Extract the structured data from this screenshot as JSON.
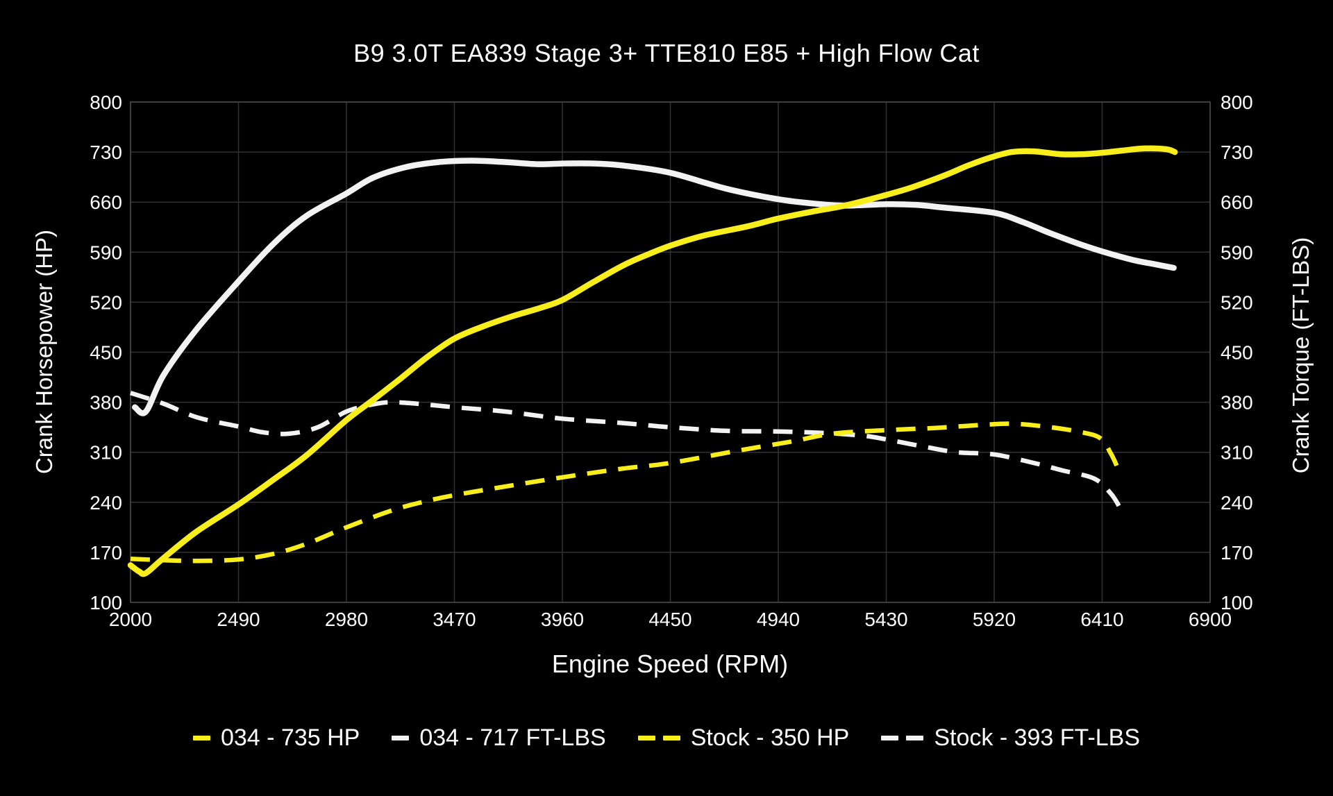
{
  "title": "B9 3.0T EA839 Stage 3+ TTE810 E85 + High Flow Cat",
  "colors": {
    "background": "#000000",
    "accent_yellow": "#f7ee1b",
    "accent_white": "#f2f2f2",
    "grid": "#323232",
    "border": "#4a4a4a",
    "text": "#ffffff"
  },
  "legend": {
    "items": [
      {
        "label": "034 - 735 HP",
        "color": "#f7ee1b",
        "dashes": 1
      },
      {
        "label": "034 - 717 FT-LBS",
        "color": "#f2f2f2",
        "dashes": 1
      },
      {
        "label": "Stock - 350 HP",
        "color": "#f7ee1b",
        "dashes": 2
      },
      {
        "label": "Stock - 393 FT-LBS",
        "color": "#f2f2f2",
        "dashes": 2
      }
    ]
  },
  "chart_data": {
    "type": "line",
    "title": "B9 3.0T EA839 Stage 3+ TTE810 E85 + High Flow Cat",
    "xlabel": "Engine Speed (RPM)",
    "ylabel_left": "Crank Horsepower (HP)",
    "ylabel_right": "Crank Torque (FT-LBS)",
    "xlim": [
      2000,
      6900
    ],
    "ylim": [
      100,
      800
    ],
    "x_ticks": [
      2000,
      2490,
      2980,
      3470,
      3960,
      4450,
      4940,
      5430,
      5920,
      6410,
      6900
    ],
    "y_ticks": [
      100,
      170,
      240,
      310,
      380,
      450,
      520,
      590,
      660,
      730,
      800
    ],
    "grid": true,
    "legend_position": "bottom",
    "series": [
      {
        "name": "Stock - 393 FT-LBS",
        "axis": "right",
        "color": "#f2f2f2",
        "style": "dashed",
        "peak_value": 393,
        "points": [
          [
            2000,
            393
          ],
          [
            2150,
            378
          ],
          [
            2300,
            359
          ],
          [
            2490,
            346
          ],
          [
            2600,
            338
          ],
          [
            2720,
            336
          ],
          [
            2850,
            345
          ],
          [
            2980,
            367
          ],
          [
            3100,
            377
          ],
          [
            3180,
            380
          ],
          [
            3300,
            378
          ],
          [
            3470,
            373
          ],
          [
            3700,
            367
          ],
          [
            3960,
            357
          ],
          [
            4230,
            351
          ],
          [
            4450,
            345
          ],
          [
            4700,
            340
          ],
          [
            4940,
            339
          ],
          [
            5150,
            337
          ],
          [
            5330,
            333
          ],
          [
            5430,
            328
          ],
          [
            5600,
            318
          ],
          [
            5750,
            310
          ],
          [
            5920,
            307
          ],
          [
            6100,
            295
          ],
          [
            6225,
            285
          ],
          [
            6375,
            273
          ],
          [
            6450,
            252
          ],
          [
            6490,
            233
          ]
        ]
      },
      {
        "name": "034 - 717 FT-LBS",
        "axis": "right",
        "color": "#f2f2f2",
        "style": "solid",
        "peak_value": 717,
        "points": [
          [
            2020,
            373
          ],
          [
            2070,
            367
          ],
          [
            2150,
            418
          ],
          [
            2300,
            482
          ],
          [
            2490,
            549
          ],
          [
            2650,
            602
          ],
          [
            2800,
            641
          ],
          [
            2980,
            672
          ],
          [
            3100,
            694
          ],
          [
            3250,
            709
          ],
          [
            3400,
            716
          ],
          [
            3550,
            718
          ],
          [
            3700,
            716
          ],
          [
            3850,
            713
          ],
          [
            3960,
            714
          ],
          [
            4100,
            714
          ],
          [
            4240,
            711
          ],
          [
            4450,
            701
          ],
          [
            4700,
            679
          ],
          [
            4940,
            664
          ],
          [
            5100,
            658
          ],
          [
            5240,
            655
          ],
          [
            5430,
            657
          ],
          [
            5570,
            656
          ],
          [
            5700,
            652
          ],
          [
            5920,
            645
          ],
          [
            6050,
            632
          ],
          [
            6170,
            617
          ],
          [
            6300,
            602
          ],
          [
            6410,
            591
          ],
          [
            6550,
            579
          ],
          [
            6650,
            573
          ],
          [
            6735,
            568
          ]
        ]
      },
      {
        "name": "Stock - 350 HP",
        "axis": "left",
        "color": "#f7ee1b",
        "style": "dashed",
        "peak_value": 350,
        "points": [
          [
            2000,
            161
          ],
          [
            2150,
            159
          ],
          [
            2300,
            158
          ],
          [
            2490,
            160
          ],
          [
            2650,
            168
          ],
          [
            2800,
            182
          ],
          [
            2980,
            205
          ],
          [
            3180,
            228
          ],
          [
            3320,
            240
          ],
          [
            3470,
            250
          ],
          [
            3700,
            262
          ],
          [
            3960,
            275
          ],
          [
            4230,
            287
          ],
          [
            4450,
            295
          ],
          [
            4770,
            313
          ],
          [
            5000,
            325
          ],
          [
            5185,
            336
          ],
          [
            5430,
            341
          ],
          [
            5650,
            344
          ],
          [
            5850,
            348
          ],
          [
            6000,
            350
          ],
          [
            6150,
            346
          ],
          [
            6300,
            339
          ],
          [
            6400,
            330
          ],
          [
            6450,
            308
          ],
          [
            6485,
            285
          ]
        ]
      },
      {
        "name": "034 - 735 HP",
        "axis": "left",
        "color": "#f7ee1b",
        "style": "solid",
        "peak_value": 735,
        "points": [
          [
            2000,
            152
          ],
          [
            2040,
            143
          ],
          [
            2070,
            141
          ],
          [
            2150,
            162
          ],
          [
            2300,
            199
          ],
          [
            2490,
            237
          ],
          [
            2650,
            272
          ],
          [
            2800,
            306
          ],
          [
            2980,
            355
          ],
          [
            3100,
            383
          ],
          [
            3225,
            413
          ],
          [
            3350,
            444
          ],
          [
            3470,
            469
          ],
          [
            3600,
            486
          ],
          [
            3730,
            500
          ],
          [
            3850,
            511
          ],
          [
            3960,
            523
          ],
          [
            4100,
            548
          ],
          [
            4240,
            572
          ],
          [
            4350,
            587
          ],
          [
            4450,
            599
          ],
          [
            4600,
            613
          ],
          [
            4800,
            626
          ],
          [
            4940,
            637
          ],
          [
            5100,
            647
          ],
          [
            5240,
            655
          ],
          [
            5430,
            670
          ],
          [
            5550,
            681
          ],
          [
            5700,
            698
          ],
          [
            5800,
            711
          ],
          [
            5900,
            722
          ],
          [
            6000,
            730
          ],
          [
            6100,
            731
          ],
          [
            6220,
            727
          ],
          [
            6320,
            727
          ],
          [
            6410,
            729
          ],
          [
            6500,
            732
          ],
          [
            6600,
            735
          ],
          [
            6700,
            734
          ],
          [
            6740,
            730
          ]
        ]
      }
    ]
  }
}
